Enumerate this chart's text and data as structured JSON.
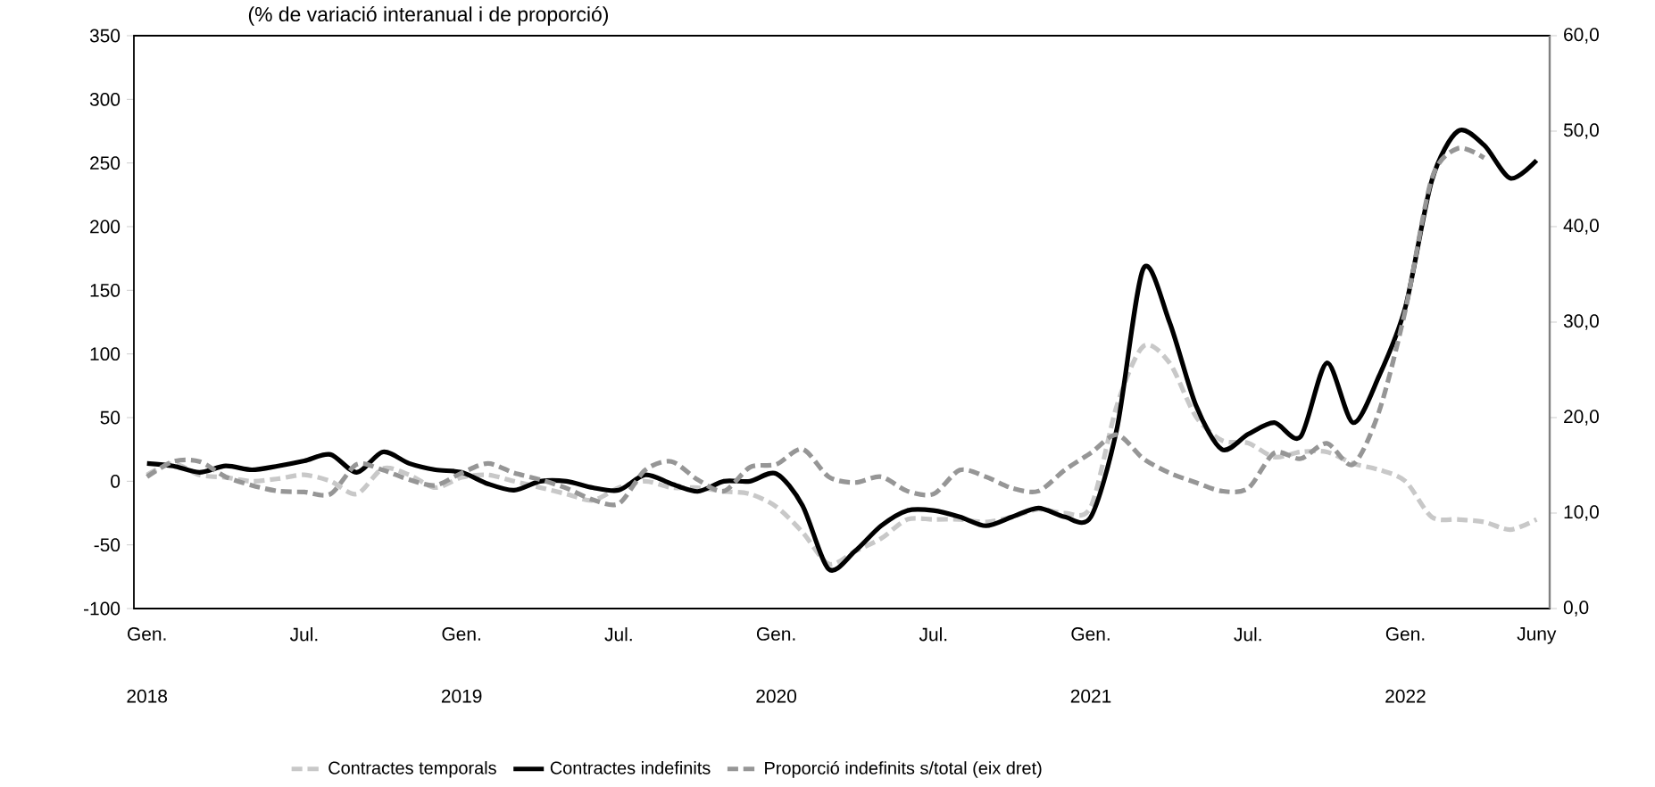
{
  "chart_data": {
    "type": "line",
    "subtitle": "(% de variació interanual i de proporció)",
    "categories": [
      "Gen. 2018",
      null,
      null,
      null,
      null,
      null,
      "Jul.",
      null,
      null,
      null,
      null,
      null,
      "Gen. 2019",
      null,
      null,
      null,
      null,
      null,
      "Jul.",
      null,
      null,
      null,
      null,
      null,
      "Gen. 2020",
      null,
      null,
      null,
      null,
      null,
      "Jul.",
      null,
      null,
      null,
      null,
      null,
      "Gen. 2021",
      null,
      null,
      null,
      null,
      null,
      "Jul.",
      null,
      null,
      null,
      null,
      null,
      "Gen. 2022",
      null,
      null,
      null,
      null,
      "Juny"
    ],
    "series": [
      {
        "name": "Contractes temporals",
        "color": "#c8c8c8",
        "line_style": "dashed",
        "values": [
          5,
          14,
          5,
          3,
          0,
          2,
          5,
          0,
          -10,
          10,
          5,
          -5,
          3,
          5,
          0,
          -5,
          -10,
          -15,
          -5,
          0,
          -5,
          -5,
          -8,
          -10,
          -20,
          -40,
          -65,
          -55,
          -45,
          -30,
          -30,
          -30,
          -32,
          -28,
          -22,
          -25,
          -20,
          60,
          106,
          93,
          51,
          32,
          30,
          19,
          23,
          23,
          14,
          9,
          0,
          -28,
          -30,
          -32,
          -38,
          -30
        ]
      },
      {
        "name": "Contractes indefinits",
        "color": "#000000",
        "line_style": "solid",
        "values": [
          14,
          12,
          7,
          12,
          9,
          12,
          16,
          21,
          7,
          23,
          14,
          9,
          7,
          -2,
          -7,
          0,
          0,
          -5,
          -7,
          5,
          -2,
          -8,
          0,
          0,
          6,
          -19,
          -69,
          -55,
          -35,
          -23,
          -23,
          -28,
          -35,
          -28,
          -21,
          -28,
          -28,
          42,
          167,
          125,
          60,
          25,
          37,
          46,
          35,
          93,
          46,
          83,
          137,
          236,
          275,
          264,
          238,
          252
        ]
      },
      {
        "name": "Proporció indefinits s/total (eix dret)",
        "color": "#969696",
        "line_style": "dashed",
        "axis": "y2",
        "values": [
          13.8,
          15.4,
          15.4,
          13.8,
          12.9,
          12.3,
          12.2,
          12,
          15.1,
          14.5,
          13.5,
          12.9,
          14.2,
          15.2,
          14.2,
          13.5,
          12.6,
          11.4,
          11,
          14.5,
          15.4,
          13.5,
          12.3,
          14.8,
          15.1,
          16.7,
          13.8,
          13.2,
          13.8,
          12.3,
          12,
          14.5,
          13.8,
          12.6,
          12.3,
          14.5,
          16.3,
          18.2,
          15.7,
          14.2,
          13.2,
          12.3,
          12.6,
          16.3,
          15.7,
          17.3,
          15.1,
          20.7,
          31.3,
          45,
          48.2,
          47.2,
          null,
          null
        ]
      }
    ],
    "ylim": [
      -100,
      350
    ],
    "yticks": [
      -100,
      -50,
      0,
      50,
      100,
      150,
      200,
      250,
      300,
      350
    ],
    "y2lim": [
      0,
      60
    ],
    "y2ticks": [
      {
        "value": 0,
        "label": "0,0"
      },
      {
        "value": 10,
        "label": "10,0"
      },
      {
        "value": 20,
        "label": "20,0"
      },
      {
        "value": 30,
        "label": "30,0"
      },
      {
        "value": 40,
        "label": "40,0"
      },
      {
        "value": 50,
        "label": "50,0"
      },
      {
        "value": 60,
        "label": "60,0"
      }
    ],
    "legend": "bottom",
    "grid": false
  }
}
